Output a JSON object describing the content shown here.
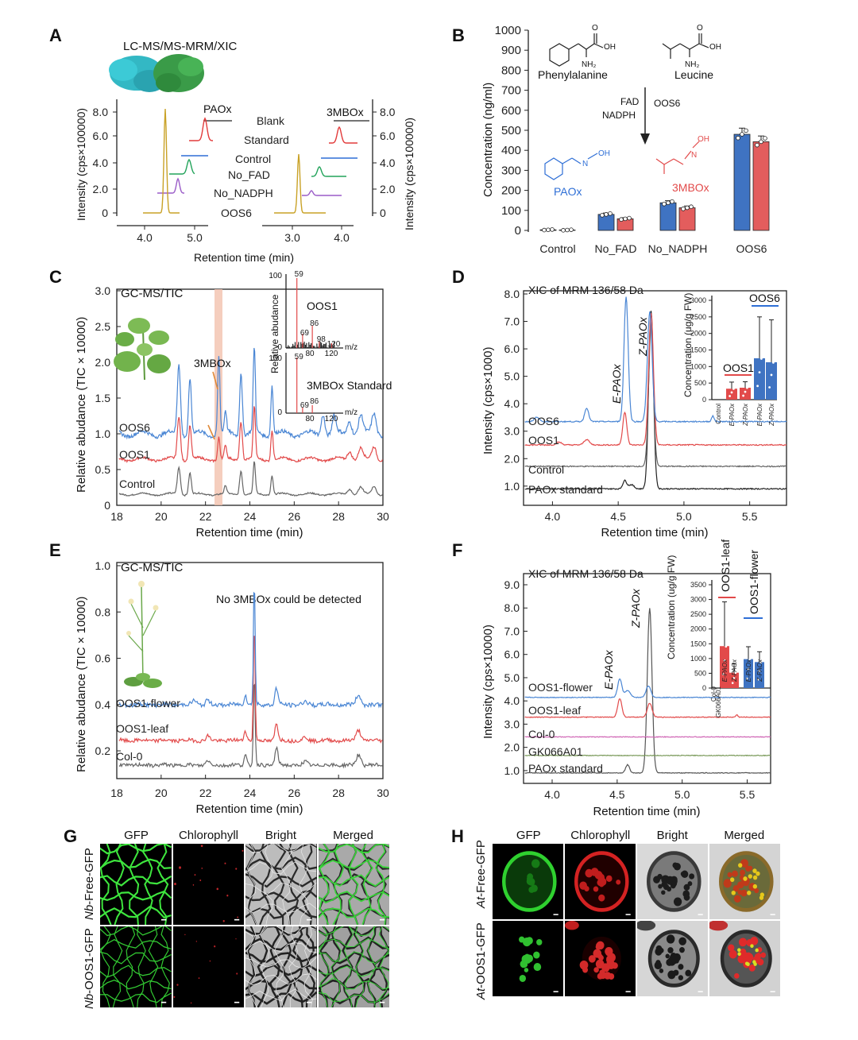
{
  "panels": {
    "A": {
      "label": "A",
      "title": "LC-MS/MS-MRM/XIC",
      "ylabel_left": "Intensity (cps×100000)",
      "ylabel_right": "Intensity (cps×100000)",
      "xlabel": "Retention time (min)",
      "left_ticks_y": [
        "8.0",
        "6.0",
        "4.0",
        "2.0",
        "0"
      ],
      "right_ticks_y": [
        "8.0",
        "6.0",
        "4.0",
        "2.0",
        "0"
      ],
      "left_ticks_x": [
        "4.0",
        "5.0"
      ],
      "right_ticks_x": [
        "3.0",
        "4.0"
      ],
      "compound_left": "PAOx",
      "compound_right": "3MBOx",
      "traces": [
        "Blank",
        "Standard",
        "Control",
        "No_FAD",
        "No_NADPH",
        "OOS6"
      ],
      "colors": {
        "OOS6": "#c9a227",
        "No_NADPH": "#9a5cc8",
        "No_FAD": "#22a35a",
        "Control": "#2f6fd6",
        "Standard": "#e23b3b",
        "Blank": "#222222"
      }
    },
    "B": {
      "label": "B",
      "ylabel": "Concentration (ng/ml)",
      "yticks": [
        "1000",
        "900",
        "800",
        "700",
        "600",
        "500",
        "400",
        "300",
        "200",
        "100",
        "0"
      ],
      "categories": [
        "Control",
        "No_FAD",
        "No_NADPH",
        "OOS6"
      ],
      "series": [
        {
          "name": "PAOx",
          "color": "#3f73c2",
          "values": [
            3,
            80,
            138,
            480
          ]
        },
        {
          "name": "3MBOx",
          "color": "#e35d5d",
          "values": [
            2,
            58,
            113,
            443
          ]
        }
      ],
      "scheme": {
        "substrate1": "Phenylalanine",
        "substrate2": "Leucine",
        "cof1": "FAD",
        "cof2": "NADPH",
        "enzyme": "OOS6",
        "prod1": "PAOx",
        "prod2": "3MBOx",
        "oh": "OH",
        "nh2": "NH₂",
        "o": "O",
        "n": "N"
      }
    },
    "C": {
      "label": "C",
      "title": "GC-MS/TIC",
      "ylabel": "Relative abudance (TIC × 10000)",
      "xlabel": "Retention time (min)",
      "xticks": [
        "18",
        "20",
        "22",
        "24",
        "26",
        "28",
        "30"
      ],
      "yticks": [
        "3.0",
        "2.5",
        "2.0",
        "1.5",
        "1.0",
        "0.5",
        "0"
      ],
      "traces": [
        "OOS6",
        "OOS1",
        "Control"
      ],
      "colors": {
        "OOS6": "#4a86d4",
        "OOS1": "#e24a4a",
        "Control": "#666666"
      },
      "annot": "3MBOx",
      "inset": {
        "ylabel": "Relative abudance",
        "top_label": "OOS1",
        "bottom_label": "3MBOx Standard",
        "ticks_y_top": "100",
        "ticks_y_mid": "0",
        "ticks_y_top2": "100",
        "ticks_y_bot": "0",
        "xticks": [
          "80",
          "120"
        ],
        "xunit": "m/z",
        "peaks_top": [
          "59",
          "69",
          "86",
          "98",
          "120"
        ],
        "peaks_bot": [
          "59",
          "69",
          "86"
        ]
      }
    },
    "D": {
      "label": "D",
      "title": "XIC of MRM 136/58 Da",
      "ylabel": "Intensity (cps×1000)",
      "xlabel": "Retention time (min)",
      "xticks": [
        "4.0",
        "4.5",
        "5.0",
        "5.5"
      ],
      "yticks": [
        "8.0",
        "7.0",
        "6.0",
        "5.0",
        "4.0",
        "3.0",
        "2.0",
        "1.0"
      ],
      "traces": [
        "OOS6",
        "OOS1",
        "Control",
        "PAOx standard"
      ],
      "peakE": "E-PAOx",
      "peakZ": "Z-PAOx",
      "inset": {
        "ylabel": "Concentration (ug/g FW)",
        "yticks": [
          "3000",
          "2500",
          "2000",
          "1500",
          "1000",
          "500",
          "0"
        ],
        "categories": [
          "Control",
          "E-PAOx",
          "Z-PAOx",
          "E-PAOx",
          "Z-PAOx"
        ],
        "values": [
          0,
          330,
          360,
          1250,
          1130
        ],
        "errors": [
          0,
          200,
          180,
          1250,
          1280
        ],
        "group1": "OOS1",
        "group2": "OOS6"
      }
    },
    "E": {
      "label": "E",
      "title": "GC-MS/TIC",
      "note": "No 3MBOx could be detected",
      "ylabel": "Relative abudance (TIC × 10000)",
      "xlabel": "Retention time (min)",
      "xticks": [
        "18",
        "20",
        "22",
        "24",
        "26",
        "28",
        "30"
      ],
      "yticks": [
        "1.0",
        "0.8",
        "0.6",
        "0.4",
        "0.2"
      ],
      "traces": [
        "OOS1-flower",
        "OOS1-leaf",
        "Col-0"
      ]
    },
    "F": {
      "label": "F",
      "title": "XIC of MRM 136/58 Da",
      "ylabel": "Intensity (cps×10000)",
      "xlabel": "Retention time (min)",
      "xticks": [
        "4.0",
        "4.5",
        "5.0",
        "5.5"
      ],
      "yticks": [
        "9.0",
        "8.0",
        "7.0",
        "6.0",
        "5.0",
        "4.0",
        "3.0",
        "2.0",
        "1.0"
      ],
      "traces": [
        "OOS1-flower",
        "OOS1-leaf",
        "Col-0",
        "GK066A01",
        "PAOx standard"
      ],
      "peakE": "E-PAOx",
      "peakZ": "Z-PAOx",
      "inset": {
        "ylabel": "Concentration  (ug/g FW)",
        "yticks": [
          "3500",
          "3000",
          "2500",
          "2000",
          "1500",
          "1000",
          "500",
          "0"
        ],
        "categories": [
          "Col-0",
          "GK066A01",
          "E-PAOx",
          "Z-PAOx",
          "E-PAOx",
          "Z-PAOx"
        ],
        "values": [
          0,
          0,
          1420,
          520,
          980,
          880
        ],
        "errors": [
          0,
          0,
          1500,
          300,
          420,
          350
        ],
        "group1": "OOS1-leaf",
        "group2": "OOS1-flower"
      }
    },
    "G": {
      "label": "G",
      "columns": [
        "GFP",
        "Chlorophyll",
        "Bright",
        "Merged"
      ],
      "row1_prefix": "Nb",
      "row1_suffix": "-Free-GFP",
      "row2_prefix": "Nb",
      "row2_suffix": "-OOS1-GFP"
    },
    "H": {
      "label": "H",
      "columns": [
        "GFP",
        "Chlorophyll",
        "Bright",
        "Merged"
      ],
      "row1_prefix": "At",
      "row1_suffix": "-Free-GFP",
      "row2_prefix": "At",
      "row2_suffix": "-OOS1-GFP"
    }
  }
}
